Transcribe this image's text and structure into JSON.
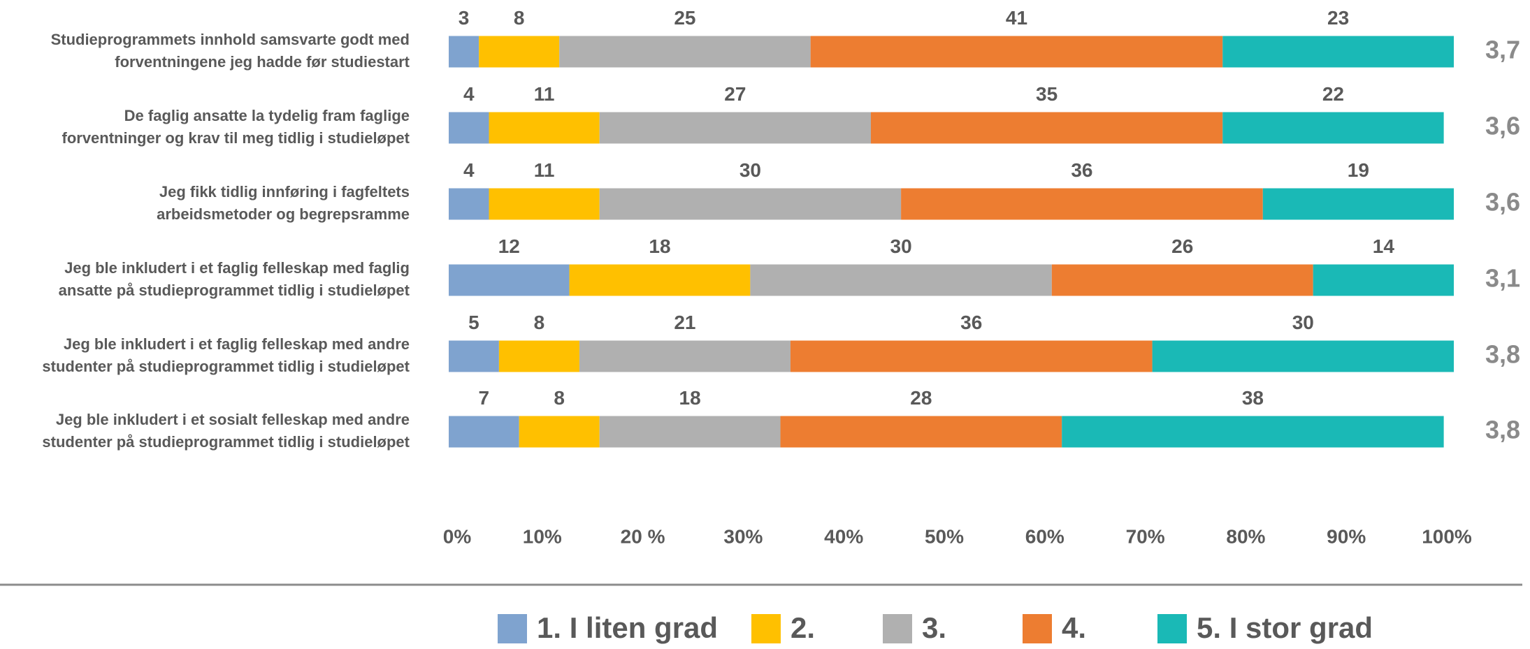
{
  "chart_data": {
    "type": "stacked-bar-horizontal",
    "categories": [
      [
        "Studieprogrammets innhold samsvarte godt med",
        "forventningene jeg hadde før studiestart"
      ],
      [
        "De faglig ansatte la tydelig fram faglige",
        "forventninger og krav til meg tidlig i studieløpet"
      ],
      [
        "Jeg fikk tidlig innføring i fagfeltets",
        "arbeidsmetoder og begrepsramme"
      ],
      [
        "Jeg ble inkludert i et faglig felleskap med faglig",
        "ansatte på studieprogrammet tidlig i studieløpet"
      ],
      [
        "Jeg ble inkludert i et faglig felleskap med andre",
        "studenter på studieprogrammet tidlig i studieløpet"
      ],
      [
        "Jeg ble inkludert i et sosialt felleskap med andre",
        "studenter på studieprogrammet tidlig i studieløpet"
      ]
    ],
    "series": [
      {
        "name": "1. I liten grad",
        "color": "#7fa3cf",
        "values": [
          3,
          4,
          4,
          12,
          5,
          7
        ]
      },
      {
        "name": "2.",
        "color": "#ffc000",
        "values": [
          8,
          11,
          11,
          18,
          8,
          8
        ]
      },
      {
        "name": "3.",
        "color": "#b0b0b0",
        "values": [
          25,
          27,
          30,
          30,
          21,
          18
        ]
      },
      {
        "name": "4.",
        "color": "#ed7d31",
        "values": [
          41,
          35,
          36,
          26,
          36,
          28
        ]
      },
      {
        "name": "5. I stor grad",
        "color": "#1ab9b6",
        "values": [
          23,
          22,
          19,
          14,
          30,
          38
        ]
      }
    ],
    "row_scores": [
      "3,7",
      "3,6",
      "3,6",
      "3,1",
      "3,8",
      "3,8"
    ],
    "xlim": [
      0,
      100
    ],
    "xticks": [
      {
        "value": 0,
        "label": "0%"
      },
      {
        "value": 10,
        "label": "10%"
      },
      {
        "value": 20,
        "label": "20 %"
      },
      {
        "value": 30,
        "label": "30%"
      },
      {
        "value": 40,
        "label": "40%"
      },
      {
        "value": 50,
        "label": "50%"
      },
      {
        "value": 60,
        "label": "60%"
      },
      {
        "value": 70,
        "label": "70%"
      },
      {
        "value": 80,
        "label": "80%"
      },
      {
        "value": 90,
        "label": "90%"
      },
      {
        "value": 100,
        "label": "100%"
      }
    ],
    "legend": "bottom"
  }
}
